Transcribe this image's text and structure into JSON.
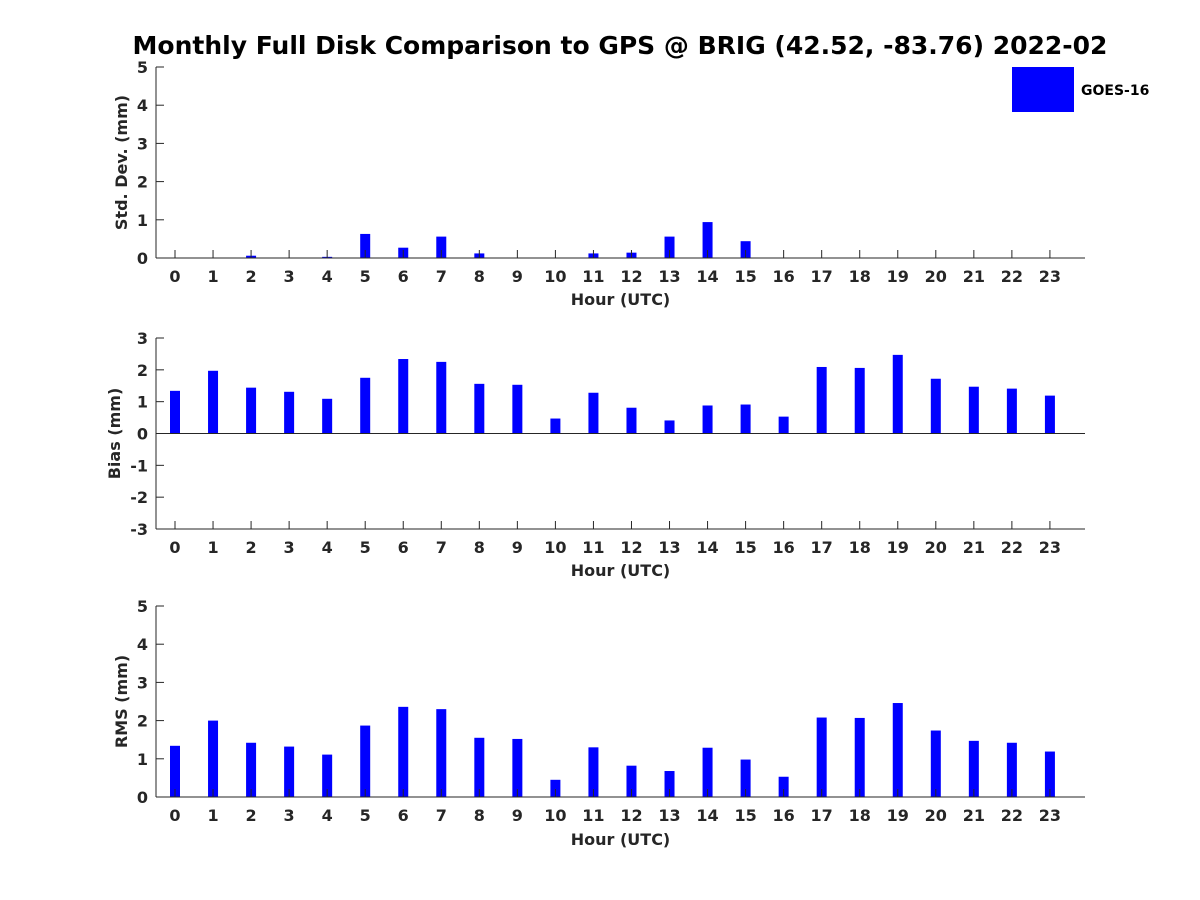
{
  "title": "Monthly Full Disk Comparison to GPS @ BRIG (42.52, -83.76) 2022-02",
  "colors": {
    "bar": "#0000ff",
    "axis": "#262626",
    "background": "#ffffff"
  },
  "legend": {
    "label": "GOES-16",
    "placement": "top-right"
  },
  "chart_data": [
    {
      "type": "bar",
      "title": "Monthly Full Disk Comparison to GPS @ BRIG (42.52, -83.76) 2022-02",
      "xlabel": "Hour (UTC)",
      "ylabel": "Std. Dev. (mm)",
      "ylim": [
        0,
        5
      ],
      "yticks": [
        "0",
        "1",
        "2",
        "3",
        "4",
        "5"
      ],
      "categories": [
        "0",
        "1",
        "2",
        "3",
        "4",
        "5",
        "6",
        "7",
        "8",
        "9",
        "10",
        "11",
        "12",
        "13",
        "14",
        "15",
        "16",
        "17",
        "18",
        "19",
        "20",
        "21",
        "22",
        "23"
      ],
      "series": [
        {
          "name": "GOES-16",
          "values": [
            0,
            0,
            0.06,
            0,
            0.03,
            0.63,
            0.27,
            0.56,
            0.12,
            0,
            0,
            0.12,
            0.14,
            0.56,
            0.94,
            0.44,
            0,
            0,
            0,
            0,
            0,
            0,
            0,
            0
          ]
        }
      ],
      "grid": false
    },
    {
      "type": "bar",
      "xlabel": "Hour (UTC)",
      "ylabel": "Bias (mm)",
      "ylim": [
        -3,
        3
      ],
      "yticks": [
        "-3",
        "-2",
        "-1",
        "0",
        "1",
        "2",
        "3"
      ],
      "categories": [
        "0",
        "1",
        "2",
        "3",
        "4",
        "5",
        "6",
        "7",
        "8",
        "9",
        "10",
        "11",
        "12",
        "13",
        "14",
        "15",
        "16",
        "17",
        "18",
        "19",
        "20",
        "21",
        "22",
        "23"
      ],
      "series": [
        {
          "name": "GOES-16",
          "values": [
            1.34,
            1.97,
            1.44,
            1.31,
            1.09,
            1.75,
            2.34,
            2.25,
            1.56,
            1.53,
            0.47,
            1.28,
            0.81,
            0.41,
            0.88,
            0.91,
            0.53,
            2.09,
            2.06,
            2.47,
            1.72,
            1.47,
            1.41,
            1.19
          ]
        }
      ],
      "grid": false
    },
    {
      "type": "bar",
      "xlabel": "Hour (UTC)",
      "ylabel": "RMS (mm)",
      "ylim": [
        0,
        5
      ],
      "yticks": [
        "0",
        "1",
        "2",
        "3",
        "4",
        "5"
      ],
      "categories": [
        "0",
        "1",
        "2",
        "3",
        "4",
        "5",
        "6",
        "7",
        "8",
        "9",
        "10",
        "11",
        "12",
        "13",
        "14",
        "15",
        "16",
        "17",
        "18",
        "19",
        "20",
        "21",
        "22",
        "23"
      ],
      "series": [
        {
          "name": "GOES-16",
          "values": [
            1.34,
            2.0,
            1.42,
            1.32,
            1.11,
            1.87,
            2.36,
            2.3,
            1.55,
            1.52,
            0.45,
            1.3,
            0.82,
            0.68,
            1.29,
            0.98,
            0.53,
            2.08,
            2.07,
            2.46,
            1.74,
            1.47,
            1.42,
            1.19
          ]
        }
      ],
      "grid": false
    }
  ]
}
